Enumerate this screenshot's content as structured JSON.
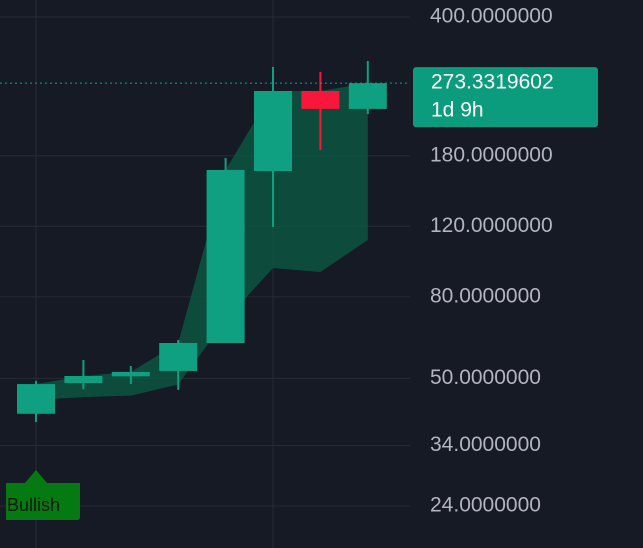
{
  "chart_data": {
    "type": "candlestick",
    "log_scale": true,
    "grid": true,
    "up_color": "#0fa082",
    "down_color": "#f7173d",
    "open": [
      40.8,
      48.7,
      50.6,
      52.2,
      61.3,
      164.9,
      261.3,
      235.7
    ],
    "high": [
      49.3,
      55.6,
      53.7,
      62.4,
      177.8,
      300.0,
      291.6,
      310.5
    ],
    "low": [
      38.9,
      47.0,
      48.4,
      46.8,
      61.3,
      119.5,
      186.1,
      229.0
    ],
    "close": [
      48.4,
      50.7,
      51.9,
      61.3,
      165.9,
      261.3,
      235.7,
      273.3319602
    ],
    "band": {
      "color": "#0b5e45",
      "upper": [
        48.4,
        50.7,
        51.9,
        61.3,
        165.9,
        261.3,
        261.3,
        273.3319602
      ],
      "lower": [
        44.2,
        44.9,
        45.3,
        48.3,
        70.0,
        94.4,
        92.2,
        110.9
      ]
    },
    "ylim": [
      18.85,
      441
    ],
    "yticks": [
      {
        "value": 24,
        "label": "24.0000000"
      },
      {
        "value": 34,
        "label": "34.0000000"
      },
      {
        "value": 50,
        "label": "50.0000000"
      },
      {
        "value": 80,
        "label": "80.0000000"
      },
      {
        "value": 120,
        "label": "120.0000000"
      },
      {
        "value": 180,
        "label": "180.0000000"
      },
      {
        "value": 400,
        "label": "400.0000000"
      }
    ],
    "countdown": "1d 9h",
    "annotations": [
      {
        "text": "Bullish",
        "index": 0
      }
    ]
  }
}
